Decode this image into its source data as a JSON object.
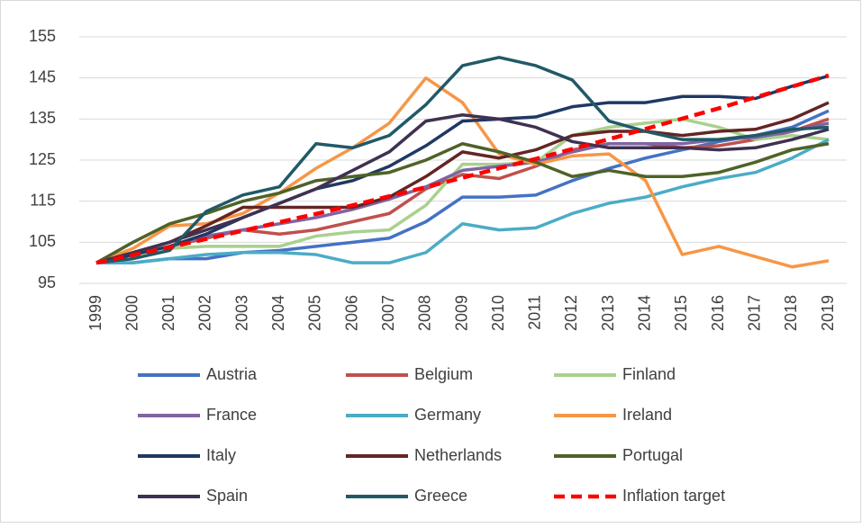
{
  "chart_data": {
    "type": "line",
    "categories": [
      "1999",
      "2000",
      "2001",
      "2002",
      "2003",
      "2004",
      "2005",
      "2006",
      "2007",
      "2008",
      "2009",
      "2010",
      "2011",
      "2012",
      "2013",
      "2014",
      "2015",
      "2016",
      "2017",
      "2018",
      "2019"
    ],
    "ylim": [
      95,
      155
    ],
    "yticks": [
      95,
      105,
      115,
      125,
      135,
      145,
      155
    ],
    "grid": true,
    "legend": "bottom",
    "series": [
      {
        "name": "Austria",
        "color": "#4472c4",
        "values": [
          100,
          100,
          101,
          101,
          102.5,
          103,
          104,
          105,
          106,
          110,
          116,
          116,
          116.5,
          120,
          123,
          125.5,
          127.5,
          129.5,
          131,
          133,
          137
        ]
      },
      {
        "name": "Belgium",
        "color": "#c0504d",
        "values": [
          100,
          102,
          104,
          106,
          108,
          107,
          108,
          110,
          112,
          118,
          121.5,
          120.5,
          123.5,
          127.5,
          129,
          129,
          128,
          128.5,
          130,
          132,
          135
        ]
      },
      {
        "name": "Finland",
        "color": "#a9d18e",
        "values": [
          100,
          102,
          103.5,
          104,
          104,
          104,
          106.5,
          107.5,
          108,
          114,
          124,
          124,
          124.5,
          131,
          133,
          134,
          135,
          133,
          130,
          131,
          130
        ]
      },
      {
        "name": "France",
        "color": "#8064a2",
        "values": [
          100,
          102,
          104,
          106.5,
          108,
          109.5,
          111,
          113,
          115.5,
          118.5,
          122.5,
          123.5,
          124.5,
          127,
          129,
          129,
          129,
          130,
          130.5,
          132,
          134
        ]
      },
      {
        "name": "Germany",
        "color": "#4bacc6",
        "values": [
          100,
          100,
          101,
          102,
          102.5,
          102.5,
          102,
          100,
          100,
          102.5,
          109.5,
          108,
          108.5,
          112,
          114.5,
          116,
          118.5,
          120.5,
          122,
          125.5,
          130
        ]
      },
      {
        "name": "Ireland",
        "color": "#f79646",
        "values": [
          100,
          103.5,
          109,
          109.5,
          112,
          117,
          123,
          128,
          134,
          145,
          139,
          126.5,
          124,
          126,
          126.5,
          120,
          102,
          104,
          101.5,
          99,
          100.5
        ]
      },
      {
        "name": "Italy",
        "color": "#1f3864",
        "values": [
          100,
          102,
          104,
          107,
          111,
          114.5,
          118,
          120,
          123.5,
          128.5,
          134.5,
          135,
          135.5,
          138,
          139,
          139,
          140.5,
          140.5,
          140,
          143,
          145.5
        ]
      },
      {
        "name": "Netherlands",
        "color": "#632523",
        "values": [
          100,
          102.5,
          105,
          109,
          113.5,
          113.5,
          113.5,
          113.5,
          116,
          121,
          127,
          125.5,
          127.5,
          131,
          132,
          132,
          131,
          132,
          132.5,
          135,
          139
        ]
      },
      {
        "name": "Portugal",
        "color": "#4f6228",
        "values": [
          100,
          105,
          109.5,
          112,
          115,
          117,
          120,
          121,
          122,
          125,
          129,
          127,
          124.5,
          121,
          122.5,
          121,
          121,
          122,
          124.5,
          127.5,
          129
        ]
      },
      {
        "name": "Spain",
        "color": "#3f3151",
        "values": [
          100,
          102.5,
          105,
          108,
          111,
          114.5,
          118,
          122.5,
          127,
          134.5,
          136,
          135,
          133,
          129.5,
          128,
          128,
          128,
          127.5,
          128,
          130,
          132.5
        ]
      },
      {
        "name": "Greece",
        "color": "#215967",
        "values": [
          100,
          101,
          103,
          112.5,
          116.5,
          118.5,
          129,
          128,
          131,
          138.5,
          148,
          150,
          148,
          144.5,
          134.5,
          132,
          130,
          130,
          131,
          132.5,
          133
        ]
      },
      {
        "name": "Inflation target",
        "color": "#ff0000",
        "dashed": true,
        "values": [
          100,
          101.9,
          103.8,
          105.8,
          107.8,
          109.9,
          111.9,
          114.0,
          116.2,
          118.4,
          120.7,
          123.0,
          125.3,
          127.7,
          130.1,
          132.6,
          135.1,
          137.6,
          140.3,
          142.9,
          145.6
        ]
      }
    ]
  }
}
